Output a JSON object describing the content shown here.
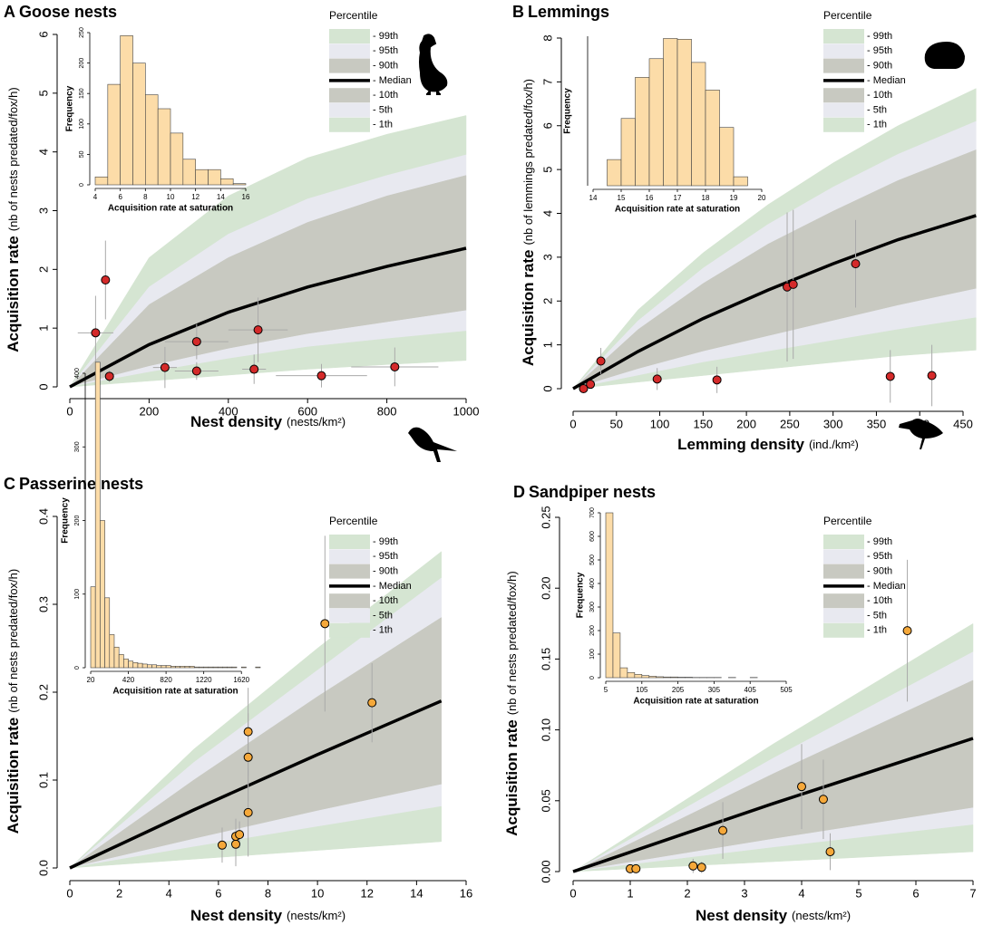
{
  "chart_data": [
    {
      "type": "line",
      "label": "A",
      "title": "Goose nests",
      "x_label": "Nest density",
      "x_unit": "(nests/km²)",
      "y_label": "Acquisition rate",
      "y_unit": "(nb of nests predated/fox/h)",
      "xlim": [
        0,
        1000
      ],
      "ylim": [
        0,
        6
      ],
      "xticks": [
        0,
        200,
        400,
        600,
        800,
        1000
      ],
      "yticks": [
        0,
        1,
        2,
        3,
        4,
        5,
        6
      ],
      "legend_title": "Percentile",
      "x": [
        0,
        200,
        400,
        600,
        800,
        1000
      ],
      "series": [
        {
          "name": "- 99th",
          "color": "#d5e5d2",
          "values": [
            0,
            2.2,
            3.25,
            3.9,
            4.3,
            4.62
          ]
        },
        {
          "name": "- 95th",
          "color": "#e8e9f0",
          "values": [
            0,
            1.7,
            2.6,
            3.2,
            3.6,
            3.95
          ]
        },
        {
          "name": "- 90th",
          "color": "#c8c9c1",
          "values": [
            0,
            1.4,
            2.2,
            2.8,
            3.25,
            3.6
          ]
        },
        {
          "name": "- Median",
          "color": "#000000",
          "values": [
            0,
            0.72,
            1.27,
            1.7,
            2.05,
            2.36
          ]
        },
        {
          "name": "- 10th",
          "color": "#c8c9c1",
          "values": [
            0,
            0.35,
            0.65,
            0.9,
            1.1,
            1.3
          ]
        },
        {
          "name": "- 5th",
          "color": "#e8e9f0",
          "values": [
            0,
            0.25,
            0.48,
            0.68,
            0.82,
            0.95
          ]
        },
        {
          "name": "- 1th",
          "color": "#d5e5d2",
          "values": [
            0,
            0.1,
            0.2,
            0.3,
            0.38,
            0.45
          ]
        }
      ],
      "points": {
        "color": "#d42a2a",
        "x": [
          65,
          90,
          100,
          240,
          320,
          320,
          465,
          475,
          635,
          820
        ],
        "y": [
          0.92,
          1.82,
          0.18,
          0.33,
          0.77,
          0.27,
          0.3,
          0.97,
          0.19,
          0.34
        ],
        "yerr": [
          0.63,
          0.67,
          0.1,
          0.35,
          0.3,
          0.15,
          0.25,
          0.55,
          0.2,
          0.33
        ],
        "xerr": [
          45,
          8,
          10,
          30,
          80,
          55,
          30,
          75,
          115,
          110
        ]
      },
      "inset": {
        "type": "histogram",
        "x_label": "Acquisition rate at saturation",
        "y_label": "Frequency",
        "color": "#fcdca8",
        "bins": [
          4,
          5,
          6,
          7,
          8,
          9,
          10,
          11,
          12,
          13,
          14,
          15,
          16
        ],
        "counts": [
          13,
          165,
          245,
          200,
          148,
          125,
          85,
          42,
          25,
          25,
          10,
          2
        ],
        "xlim": [
          4,
          16
        ],
        "ylim": [
          0,
          250
        ],
        "xticks": [
          4,
          6,
          8,
          10,
          12,
          14,
          16
        ],
        "yticks": [
          0,
          50,
          100,
          150,
          200,
          250
        ]
      }
    },
    {
      "type": "line",
      "label": "B",
      "title": "Lemmings",
      "x_label": "Lemming density",
      "x_unit": "(ind./km²)",
      "y_label": "Acquisition rate",
      "y_unit": "(nb of lemmings predated/fox/h)",
      "xlim": [
        0,
        450
      ],
      "ylim": [
        0,
        8
      ],
      "xticks": [
        0,
        50,
        100,
        150,
        200,
        250,
        300,
        350,
        400,
        450
      ],
      "yticks": [
        0,
        1,
        2,
        3,
        4,
        5,
        6,
        7,
        8
      ],
      "legend_title": "Percentile",
      "x": [
        0,
        75,
        150,
        225,
        300,
        375,
        465
      ],
      "series": [
        {
          "name": "- 99th",
          "color": "#d5e5d2",
          "values": [
            0,
            1.8,
            3.1,
            4.2,
            5.15,
            6.0,
            6.85
          ]
        },
        {
          "name": "- 95th",
          "color": "#e8e9f0",
          "values": [
            0,
            1.55,
            2.75,
            3.75,
            4.6,
            5.35,
            6.1
          ]
        },
        {
          "name": "- 90th",
          "color": "#c8c9c1",
          "values": [
            0,
            1.35,
            2.4,
            3.3,
            4.05,
            4.75,
            5.45
          ]
        },
        {
          "name": "- Median",
          "color": "#000000",
          "values": [
            0,
            0.85,
            1.6,
            2.25,
            2.85,
            3.4,
            3.95
          ]
        },
        {
          "name": "- 10th",
          "color": "#c8c9c1",
          "values": [
            0,
            0.45,
            0.85,
            1.2,
            1.55,
            1.9,
            2.28
          ]
        },
        {
          "name": "- 5th",
          "color": "#e8e9f0",
          "values": [
            0,
            0.3,
            0.6,
            0.85,
            1.1,
            1.35,
            1.62
          ]
        },
        {
          "name": "- 1th",
          "color": "#d5e5d2",
          "values": [
            0,
            0.15,
            0.3,
            0.45,
            0.6,
            0.75,
            0.88
          ]
        }
      ],
      "points": {
        "color": "#d42a2a",
        "x": [
          12,
          20,
          32,
          97,
          166,
          247,
          254,
          326,
          366,
          414
        ],
        "y": [
          0.0,
          0.1,
          0.63,
          0.22,
          0.2,
          2.32,
          2.38,
          2.85,
          0.28,
          0.3
        ],
        "yerr": [
          0.05,
          0.08,
          0.3,
          0.25,
          0.3,
          1.7,
          1.7,
          1.0,
          0.6,
          0.7
        ]
      },
      "inset": {
        "type": "histogram",
        "x_label": "Acquisition rate at saturation",
        "y_label": "Frequency",
        "color": "#fcdca8",
        "bins": [
          14.5,
          15,
          15.5,
          16,
          16.5,
          17,
          17.5,
          18,
          18.5,
          19,
          19.5
        ],
        "counts": [
          35,
          90,
          145,
          170,
          197,
          196,
          165,
          128,
          78,
          12
        ],
        "xlim": [
          14,
          20
        ],
        "ylim": [
          0,
          200
        ],
        "xticks": [
          14,
          15,
          16,
          17,
          18,
          19,
          20
        ]
      }
    },
    {
      "type": "line",
      "label": "C",
      "title": "Passerine nests",
      "x_label": "Nest density",
      "x_unit": "(nests/km²)",
      "y_label": "Acquisition rate",
      "y_unit": "(nb of nests predated/fox/h)",
      "xlim": [
        0,
        16
      ],
      "ylim": [
        0,
        0.4
      ],
      "xticks": [
        0,
        2,
        4,
        6,
        8,
        10,
        12,
        14,
        16
      ],
      "yticks": [
        {
          "value": 0,
          "label": "0.0"
        },
        0.1,
        0.2,
        0.3,
        0.4
      ],
      "legend_title": "Percentile",
      "x": [
        0,
        5,
        10,
        15
      ],
      "series": [
        {
          "name": "- 99th",
          "color": "#d5e5d2",
          "values": [
            0,
            0.135,
            0.25,
            0.36
          ]
        },
        {
          "name": "- 95th",
          "color": "#e8e9f0",
          "values": [
            0,
            0.12,
            0.225,
            0.33
          ]
        },
        {
          "name": "- 90th",
          "color": "#c8c9c1",
          "values": [
            0,
            0.1,
            0.195,
            0.285
          ]
        },
        {
          "name": "- Median",
          "color": "#000000",
          "values": [
            0,
            0.066,
            0.129,
            0.19
          ]
        },
        {
          "name": "- 10th",
          "color": "#c8c9c1",
          "values": [
            0,
            0.033,
            0.065,
            0.095
          ]
        },
        {
          "name": "- 5th",
          "color": "#e8e9f0",
          "values": [
            0,
            0.024,
            0.047,
            0.07
          ]
        },
        {
          "name": "- 1th",
          "color": "#d5e5d2",
          "values": [
            0,
            0.01,
            0.02,
            0.03
          ]
        }
      ],
      "points": {
        "color": "#f5a83a",
        "x": [
          6.15,
          6.7,
          6.7,
          6.85,
          7.2,
          7.2,
          7.2,
          10.3,
          12.2
        ],
        "y": [
          0.026,
          0.027,
          0.036,
          0.038,
          0.063,
          0.126,
          0.155,
          0.278,
          0.188
        ],
        "yerr": [
          0.02,
          0.025,
          0.02,
          0.015,
          0.05,
          0.05,
          0.05,
          0.1,
          0.045
        ]
      },
      "inset": {
        "type": "histogram",
        "x_label": "Acquisition rate at saturation",
        "y_label": "Frequency",
        "color": "#fcdca8",
        "bins": [
          20,
          70,
          120,
          170,
          220,
          270,
          320,
          370,
          420,
          470,
          520,
          570,
          620,
          670,
          720,
          770,
          820,
          870,
          920,
          970,
          1020,
          1070,
          1120,
          1170,
          1220,
          1270,
          1320,
          1370,
          1420,
          1470,
          1520,
          1570,
          1620,
          1670,
          1720,
          1770,
          1820
        ],
        "counts": [
          110,
          415,
          200,
          95,
          45,
          28,
          18,
          12,
          9,
          7,
          6,
          5,
          4,
          4,
          3,
          3,
          3,
          2,
          2,
          2,
          2,
          2,
          1,
          1,
          1,
          1,
          1,
          1,
          1,
          1,
          1,
          0,
          1,
          0,
          0,
          1
        ],
        "xlim": [
          20,
          1820
        ],
        "ylim": [
          0,
          400
        ],
        "xticks": [
          20,
          420,
          820,
          1220,
          1620
        ],
        "yticks": [
          0,
          100,
          200,
          300,
          400
        ]
      }
    },
    {
      "type": "line",
      "label": "D",
      "title": "Sandpiper nests",
      "x_label": "Nest density",
      "x_unit": "(nests/km²)",
      "y_label": "Acquisition rate",
      "y_unit": "(nb of nests predated/fox/h)",
      "xlim": [
        0,
        7
      ],
      "ylim": [
        0,
        0.25
      ],
      "xticks": [
        0,
        1,
        2,
        3,
        4,
        5,
        6,
        7
      ],
      "yticks": [
        {
          "value": 0,
          "label": "0.00"
        },
        0.05,
        {
          "value": 0.1,
          "label": "0.10"
        },
        0.15,
        {
          "value": 0.2,
          "label": "0.20"
        },
        0.25
      ],
      "legend_title": "Percentile",
      "x": [
        0,
        3.5,
        7
      ],
      "series": [
        {
          "name": "- 99th",
          "color": "#d5e5d2",
          "values": [
            0,
            0.09,
            0.175
          ]
        },
        {
          "name": "- 95th",
          "color": "#e8e9f0",
          "values": [
            0,
            0.08,
            0.155
          ]
        },
        {
          "name": "- 90th",
          "color": "#c8c9c1",
          "values": [
            0,
            0.069,
            0.135
          ]
        },
        {
          "name": "- Median",
          "color": "#000000",
          "values": [
            0,
            0.048,
            0.094
          ]
        },
        {
          "name": "- 10th",
          "color": "#c8c9c1",
          "values": [
            0,
            0.023,
            0.045
          ]
        },
        {
          "name": "- 5th",
          "color": "#e8e9f0",
          "values": [
            0,
            0.017,
            0.033
          ]
        },
        {
          "name": "- 1th",
          "color": "#d5e5d2",
          "values": [
            0,
            0.007,
            0.014
          ]
        }
      ],
      "points": {
        "color": "#f5a83a",
        "x": [
          1.0,
          1.1,
          2.1,
          2.25,
          2.62,
          4.0,
          4.38,
          4.5,
          5.85
        ],
        "y": [
          0.002,
          0.002,
          0.004,
          0.003,
          0.029,
          0.06,
          0.051,
          0.014,
          0.17
        ],
        "yerr": [
          0.003,
          0.003,
          0.005,
          0.004,
          0.02,
          0.03,
          0.028,
          0.013,
          0.05
        ]
      },
      "inset": {
        "type": "histogram",
        "x_label": "Acquisition rate at saturation",
        "y_label": "Frequency",
        "color": "#fcdca8",
        "bins": [
          5,
          25,
          45,
          65,
          85,
          105,
          125,
          145,
          165,
          185,
          205,
          225,
          245,
          265,
          285,
          305,
          325,
          345,
          365,
          385,
          405,
          425,
          445,
          465,
          485,
          505
        ],
        "counts": [
          700,
          190,
          42,
          22,
          14,
          9,
          6,
          4,
          3,
          3,
          2,
          2,
          1,
          1,
          1,
          1,
          0,
          1,
          0,
          0,
          1,
          0,
          0,
          0,
          0
        ],
        "xlim": [
          5,
          505
        ],
        "ylim": [
          0,
          700
        ],
        "xticks": [
          5,
          105,
          205,
          305,
          405,
          505
        ],
        "yticks": [
          0,
          100,
          200,
          300,
          400,
          500,
          600,
          700
        ]
      }
    }
  ]
}
